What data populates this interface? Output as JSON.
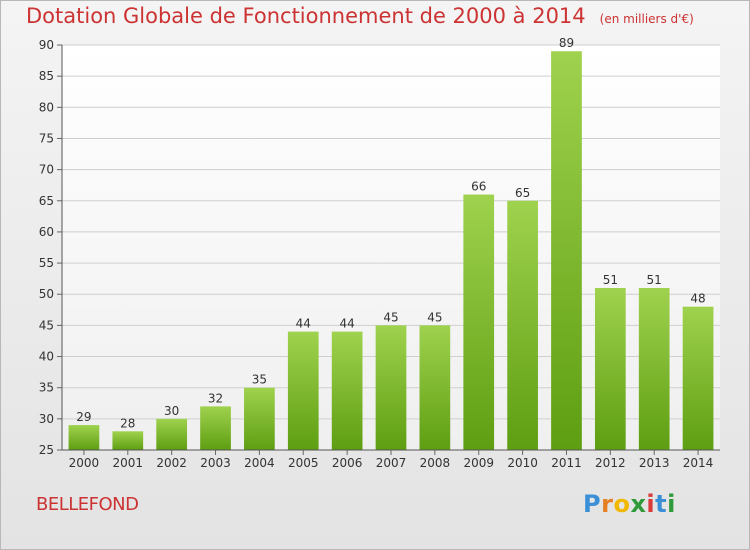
{
  "title": "Dotation Globale de Fonctionnement de 2000 à 2014",
  "unit": "(en milliers d'€)",
  "commune": "BELLEFOND",
  "logo": {
    "letters": [
      "P",
      "r",
      "o",
      "x",
      "i",
      "t",
      "i"
    ],
    "colors": [
      "#3b8fd6",
      "#e67e22",
      "#f0b800",
      "#2e9a3a",
      "#d93a3a",
      "#3b8fd6",
      "#2e9a3a"
    ]
  },
  "colors": {
    "bar_top": "#9fd24e",
    "bar_bottom": "#5e9e12",
    "title": "#cc3333"
  },
  "chart_data": {
    "type": "bar",
    "categories": [
      "2000",
      "2001",
      "2002",
      "2003",
      "2004",
      "2005",
      "2006",
      "2007",
      "2008",
      "2009",
      "2010",
      "2011",
      "2012",
      "2013",
      "2014"
    ],
    "values": [
      29,
      28,
      30,
      32,
      35,
      44,
      44,
      45,
      45,
      66,
      65,
      89,
      51,
      51,
      48
    ],
    "ylim": [
      25,
      90
    ],
    "yticks": [
      25,
      30,
      35,
      40,
      45,
      50,
      55,
      60,
      65,
      70,
      75,
      80,
      85,
      90
    ],
    "grid": true
  }
}
